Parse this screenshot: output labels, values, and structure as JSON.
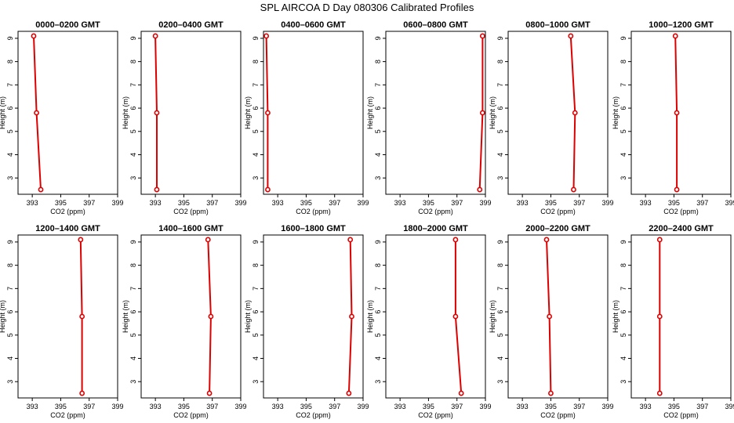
{
  "figure_title": "SPL AIRCOA D  Day 080306  Calibrated Profiles",
  "colors": {
    "series": "#dd0000",
    "axis": "#000000"
  },
  "chart_data": [
    {
      "type": "line",
      "title": "0000–0200 GMT",
      "xlabel": "CO2 (ppm)",
      "ylabel": "Height (m)",
      "x": [
        393.1,
        393.3,
        393.6
      ],
      "y": [
        9.1,
        5.8,
        2.5
      ],
      "xlim": [
        392,
        399
      ],
      "ylim": [
        2.3,
        9.3
      ],
      "xticks": [
        393,
        395,
        397,
        399
      ],
      "yticks": [
        3,
        4,
        5,
        6,
        7,
        8,
        9
      ]
    },
    {
      "type": "line",
      "title": "0200–0400 GMT",
      "xlabel": "CO2 (ppm)",
      "ylabel": "Height (m)",
      "x": [
        393.0,
        393.1,
        393.1
      ],
      "y": [
        9.1,
        5.8,
        2.5
      ],
      "xlim": [
        392,
        399
      ],
      "ylim": [
        2.3,
        9.3
      ],
      "xticks": [
        393,
        395,
        397,
        399
      ],
      "yticks": [
        3,
        4,
        5,
        6,
        7,
        8,
        9
      ]
    },
    {
      "type": "line",
      "title": "0400–0600 GMT",
      "xlabel": "CO2 (ppm)",
      "ylabel": "Height (m)",
      "x": [
        392.2,
        392.3,
        392.3
      ],
      "y": [
        9.1,
        5.8,
        2.5
      ],
      "xlim": [
        392,
        399
      ],
      "ylim": [
        2.3,
        9.3
      ],
      "xticks": [
        393,
        395,
        397,
        399
      ],
      "yticks": [
        3,
        4,
        5,
        6,
        7,
        8,
        9
      ]
    },
    {
      "type": "line",
      "title": "0600–0800 GMT",
      "xlabel": "CO2 (ppm)",
      "ylabel": "Height (m)",
      "x": [
        398.8,
        398.8,
        398.6
      ],
      "y": [
        9.1,
        5.8,
        2.5
      ],
      "xlim": [
        392,
        399
      ],
      "ylim": [
        2.3,
        9.3
      ],
      "xticks": [
        393,
        395,
        397,
        399
      ],
      "yticks": [
        3,
        4,
        5,
        6,
        7,
        8,
        9
      ]
    },
    {
      "type": "line",
      "title": "0800–1000 GMT",
      "xlabel": "CO2 (ppm)",
      "ylabel": "Height (m)",
      "x": [
        396.4,
        396.7,
        396.6
      ],
      "y": [
        9.1,
        5.8,
        2.5
      ],
      "xlim": [
        392,
        399
      ],
      "ylim": [
        2.3,
        9.3
      ],
      "xticks": [
        393,
        395,
        397,
        399
      ],
      "yticks": [
        3,
        4,
        5,
        6,
        7,
        8,
        9
      ]
    },
    {
      "type": "line",
      "title": "1000–1200 GMT",
      "xlabel": "CO2 (ppm)",
      "ylabel": "Height (m)",
      "x": [
        395.1,
        395.2,
        395.2
      ],
      "y": [
        9.1,
        5.8,
        2.5
      ],
      "xlim": [
        392,
        399
      ],
      "ylim": [
        2.3,
        9.3
      ],
      "xticks": [
        393,
        395,
        397,
        399
      ],
      "yticks": [
        3,
        4,
        5,
        6,
        7,
        8,
        9
      ]
    },
    {
      "type": "line",
      "title": "1200–1400 GMT",
      "xlabel": "CO2 (ppm)",
      "ylabel": "Height (m)",
      "x": [
        396.4,
        396.5,
        396.5
      ],
      "y": [
        9.1,
        5.8,
        2.5
      ],
      "xlim": [
        392,
        399
      ],
      "ylim": [
        2.3,
        9.3
      ],
      "xticks": [
        393,
        395,
        397,
        399
      ],
      "yticks": [
        3,
        4,
        5,
        6,
        7,
        8,
        9
      ]
    },
    {
      "type": "line",
      "title": "1400–1600 GMT",
      "xlabel": "CO2 (ppm)",
      "ylabel": "Height (m)",
      "x": [
        396.7,
        396.9,
        396.8
      ],
      "y": [
        9.1,
        5.8,
        2.5
      ],
      "xlim": [
        392,
        399
      ],
      "ylim": [
        2.3,
        9.3
      ],
      "xticks": [
        393,
        395,
        397,
        399
      ],
      "yticks": [
        3,
        4,
        5,
        6,
        7,
        8,
        9
      ]
    },
    {
      "type": "line",
      "title": "1600–1800 GMT",
      "xlabel": "CO2 (ppm)",
      "ylabel": "Height (m)",
      "x": [
        398.1,
        398.2,
        398.0
      ],
      "y": [
        9.1,
        5.8,
        2.5
      ],
      "xlim": [
        392,
        399
      ],
      "ylim": [
        2.3,
        9.3
      ],
      "xticks": [
        393,
        395,
        397,
        399
      ],
      "yticks": [
        3,
        4,
        5,
        6,
        7,
        8,
        9
      ]
    },
    {
      "type": "line",
      "title": "1800–2000 GMT",
      "xlabel": "CO2 (ppm)",
      "ylabel": "Height (m)",
      "x": [
        396.9,
        396.9,
        397.3
      ],
      "y": [
        9.1,
        5.8,
        2.5
      ],
      "xlim": [
        392,
        399
      ],
      "ylim": [
        2.3,
        9.3
      ],
      "xticks": [
        393,
        395,
        397,
        399
      ],
      "yticks": [
        3,
        4,
        5,
        6,
        7,
        8,
        9
      ]
    },
    {
      "type": "line",
      "title": "2000–2200 GMT",
      "xlabel": "CO2 (ppm)",
      "ylabel": "Height (m)",
      "x": [
        394.7,
        394.9,
        395.0
      ],
      "y": [
        9.1,
        5.8,
        2.5
      ],
      "xlim": [
        392,
        399
      ],
      "ylim": [
        2.3,
        9.3
      ],
      "xticks": [
        393,
        395,
        397,
        399
      ],
      "yticks": [
        3,
        4,
        5,
        6,
        7,
        8,
        9
      ]
    },
    {
      "type": "line",
      "title": "2200–2400 GMT",
      "xlabel": "CO2 (ppm)",
      "ylabel": "Height (m)",
      "x": [
        394.0,
        394.0,
        394.0
      ],
      "y": [
        9.1,
        5.8,
        2.5
      ],
      "xlim": [
        392,
        399
      ],
      "ylim": [
        2.3,
        9.3
      ],
      "xticks": [
        393,
        395,
        397,
        399
      ],
      "yticks": [
        3,
        4,
        5,
        6,
        7,
        8,
        9
      ]
    }
  ]
}
